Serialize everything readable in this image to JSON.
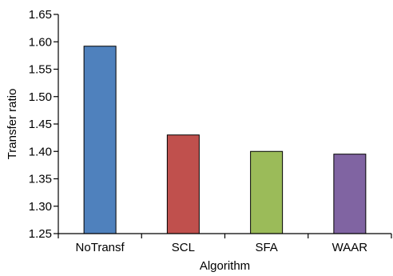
{
  "chart_data": {
    "type": "bar",
    "title": "",
    "xlabel": "Algorithm",
    "ylabel": "Transfer ratio",
    "categories": [
      "NoTransf",
      "SCL",
      "SFA",
      "WAAR"
    ],
    "values": [
      1.592,
      1.43,
      1.4,
      1.395
    ],
    "ylim": [
      1.25,
      1.65
    ],
    "yticks": [
      "1.25",
      "1.30",
      "1.35",
      "1.40",
      "1.45",
      "1.50",
      "1.55",
      "1.60",
      "1.65"
    ],
    "colors": [
      "#4f81bd",
      "#c0504d",
      "#9bbb59",
      "#8064a2"
    ],
    "grid": false,
    "legend": "none"
  }
}
